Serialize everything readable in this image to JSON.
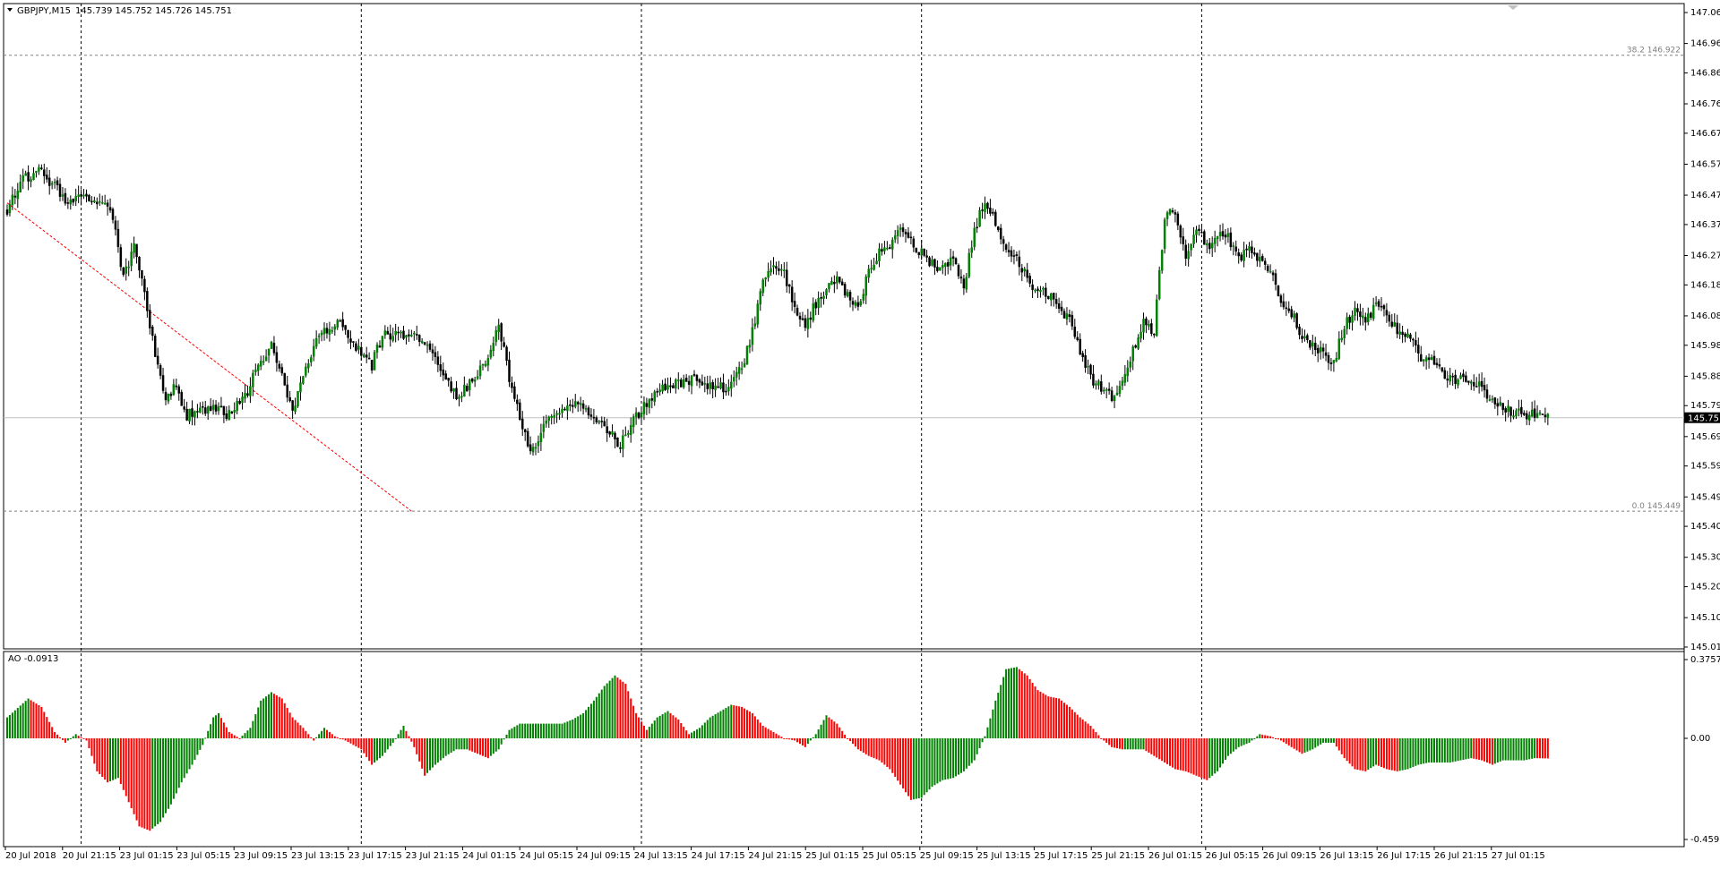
{
  "chart_data": [
    {
      "type": "candlestick",
      "symbol": "GBPJPY,M15",
      "header_label": "GBPJPY,M15",
      "ohlc_label": "145.739 145.752 145.726 145.751",
      "current_price": 145.751,
      "current_price_label": "145.751",
      "ylim": [
        145.01,
        147.06
      ],
      "y_ticks": [
        "147.060",
        "146.960",
        "146.865",
        "146.765",
        "146.670",
        "146.570",
        "146.470",
        "146.375",
        "146.275",
        "146.180",
        "146.080",
        "145.985",
        "145.885",
        "145.790",
        "145.690",
        "145.595",
        "145.495",
        "145.400",
        "145.300",
        "145.205",
        "145.105",
        "145.010"
      ],
      "x_ticks": [
        "20 Jul 2018",
        "20 Jul 21:15",
        "23 Jul 01:15",
        "23 Jul 05:15",
        "23 Jul 09:15",
        "23 Jul 13:15",
        "23 Jul 17:15",
        "23 Jul 21:15",
        "24 Jul 01:15",
        "24 Jul 05:15",
        "24 Jul 09:15",
        "24 Jul 13:15",
        "24 Jul 17:15",
        "24 Jul 21:15",
        "25 Jul 01:15",
        "25 Jul 05:15",
        "25 Jul 09:15",
        "25 Jul 13:15",
        "25 Jul 17:15",
        "25 Jul 21:15",
        "26 Jul 01:15",
        "26 Jul 05:15",
        "26 Jul 09:15",
        "26 Jul 13:15",
        "26 Jul 17:15",
        "26 Jul 21:15",
        "27 Jul 01:15"
      ],
      "fibonacci": [
        {
          "label": "38.2 146.922",
          "price": 146.922
        },
        {
          "label": "0.0 145.449",
          "price": 145.449
        }
      ],
      "close_path": [
        [
          0,
          146.42
        ],
        [
          6,
          146.52
        ],
        [
          12,
          146.55
        ],
        [
          18,
          146.5
        ],
        [
          24,
          146.44
        ],
        [
          30,
          146.47
        ],
        [
          36,
          146.45
        ],
        [
          40,
          146.4
        ],
        [
          44,
          146.2
        ],
        [
          48,
          146.3
        ],
        [
          52,
          146.15
        ],
        [
          56,
          145.96
        ],
        [
          60,
          145.82
        ],
        [
          64,
          145.85
        ],
        [
          68,
          145.76
        ],
        [
          74,
          145.77
        ],
        [
          78,
          145.79
        ],
        [
          84,
          145.76
        ],
        [
          90,
          145.82
        ],
        [
          94,
          145.9
        ],
        [
          100,
          145.98
        ],
        [
          104,
          145.9
        ],
        [
          108,
          145.76
        ],
        [
          112,
          145.9
        ],
        [
          116,
          145.98
        ],
        [
          120,
          146.03
        ],
        [
          126,
          146.06
        ],
        [
          132,
          145.98
        ],
        [
          138,
          145.92
        ],
        [
          142,
          146.02
        ],
        [
          148,
          146.02
        ],
        [
          154,
          146.03
        ],
        [
          160,
          145.97
        ],
        [
          166,
          145.88
        ],
        [
          170,
          145.82
        ],
        [
          176,
          145.87
        ],
        [
          182,
          145.95
        ],
        [
          186,
          146.05
        ],
        [
          190,
          145.88
        ],
        [
          194,
          145.76
        ],
        [
          198,
          145.63
        ],
        [
          200,
          145.66
        ],
        [
          204,
          145.74
        ],
        [
          210,
          145.77
        ],
        [
          216,
          145.79
        ],
        [
          222,
          145.76
        ],
        [
          228,
          145.7
        ],
        [
          232,
          145.66
        ],
        [
          236,
          145.73
        ],
        [
          242,
          145.8
        ],
        [
          248,
          145.84
        ],
        [
          254,
          145.86
        ],
        [
          260,
          145.88
        ],
        [
          266,
          145.85
        ],
        [
          272,
          145.85
        ],
        [
          278,
          145.91
        ],
        [
          282,
          146.03
        ],
        [
          286,
          146.18
        ],
        [
          290,
          146.25
        ],
        [
          294,
          146.22
        ],
        [
          298,
          146.1
        ],
        [
          302,
          146.05
        ],
        [
          306,
          146.12
        ],
        [
          310,
          146.16
        ],
        [
          314,
          146.2
        ],
        [
          318,
          146.15
        ],
        [
          322,
          146.11
        ],
        [
          326,
          146.22
        ],
        [
          330,
          146.29
        ],
        [
          334,
          146.3
        ],
        [
          338,
          146.36
        ],
        [
          342,
          146.32
        ],
        [
          346,
          146.28
        ],
        [
          350,
          146.25
        ],
        [
          354,
          146.23
        ],
        [
          358,
          146.27
        ],
        [
          362,
          146.18
        ],
        [
          366,
          146.35
        ],
        [
          370,
          146.46
        ],
        [
          374,
          146.38
        ],
        [
          378,
          146.3
        ],
        [
          382,
          146.27
        ],
        [
          386,
          146.2
        ],
        [
          390,
          146.16
        ],
        [
          394,
          146.15
        ],
        [
          398,
          146.11
        ],
        [
          402,
          146.06
        ],
        [
          406,
          145.97
        ],
        [
          410,
          145.88
        ],
        [
          414,
          145.85
        ],
        [
          418,
          145.82
        ],
        [
          422,
          145.87
        ],
        [
          426,
          145.97
        ],
        [
          430,
          146.06
        ],
        [
          434,
          146.03
        ],
        [
          438,
          146.4
        ],
        [
          442,
          146.42
        ],
        [
          446,
          146.28
        ],
        [
          450,
          146.37
        ],
        [
          454,
          146.3
        ],
        [
          458,
          146.34
        ],
        [
          462,
          146.33
        ],
        [
          466,
          146.27
        ],
        [
          470,
          146.29
        ],
        [
          474,
          146.26
        ],
        [
          478,
          146.22
        ],
        [
          482,
          146.13
        ],
        [
          486,
          146.09
        ],
        [
          490,
          146.01
        ],
        [
          494,
          145.99
        ],
        [
          498,
          145.96
        ],
        [
          502,
          145.93
        ],
        [
          506,
          146.05
        ],
        [
          510,
          146.09
        ],
        [
          514,
          146.06
        ],
        [
          518,
          146.12
        ],
        [
          522,
          146.08
        ],
        [
          526,
          146.03
        ],
        [
          530,
          146.02
        ],
        [
          534,
          145.95
        ],
        [
          538,
          145.94
        ],
        [
          542,
          145.91
        ],
        [
          546,
          145.88
        ],
        [
          550,
          145.87
        ],
        [
          554,
          145.88
        ],
        [
          558,
          145.84
        ],
        [
          562,
          145.81
        ],
        [
          566,
          145.78
        ],
        [
          570,
          145.77
        ],
        [
          574,
          145.76
        ],
        [
          578,
          145.76
        ],
        [
          583,
          145.75
        ]
      ]
    },
    {
      "type": "bar",
      "indicator": "AO",
      "label": "AO -0.0913",
      "ylim": [
        -0.4595,
        0.3757
      ],
      "y_ticks": [
        "0.3757",
        "0.00",
        "-0.4595"
      ],
      "keypoints": [
        [
          0,
          0.1
        ],
        [
          8,
          0.19
        ],
        [
          13,
          0.15
        ],
        [
          18,
          0.03
        ],
        [
          22,
          -0.02
        ],
        [
          26,
          0.02
        ],
        [
          30,
          -0.01
        ],
        [
          34,
          -0.15
        ],
        [
          38,
          -0.2
        ],
        [
          42,
          -0.18
        ],
        [
          46,
          -0.29
        ],
        [
          50,
          -0.4
        ],
        [
          54,
          -0.42
        ],
        [
          58,
          -0.38
        ],
        [
          62,
          -0.3
        ],
        [
          66,
          -0.2
        ],
        [
          70,
          -0.12
        ],
        [
          74,
          -0.03
        ],
        [
          78,
          0.1
        ],
        [
          80,
          0.12
        ],
        [
          84,
          0.03
        ],
        [
          88,
          0.0
        ],
        [
          92,
          0.05
        ],
        [
          96,
          0.18
        ],
        [
          100,
          0.22
        ],
        [
          104,
          0.19
        ],
        [
          108,
          0.1
        ],
        [
          112,
          0.05
        ],
        [
          116,
          -0.01
        ],
        [
          120,
          0.05
        ],
        [
          124,
          0.01
        ],
        [
          128,
          -0.01
        ],
        [
          134,
          -0.05
        ],
        [
          138,
          -0.12
        ],
        [
          142,
          -0.08
        ],
        [
          146,
          -0.02
        ],
        [
          150,
          0.06
        ],
        [
          154,
          -0.04
        ],
        [
          158,
          -0.17
        ],
        [
          162,
          -0.12
        ],
        [
          166,
          -0.08
        ],
        [
          170,
          -0.05
        ],
        [
          174,
          -0.05
        ],
        [
          178,
          -0.07
        ],
        [
          182,
          -0.09
        ],
        [
          186,
          -0.05
        ],
        [
          190,
          0.04
        ],
        [
          194,
          0.07
        ],
        [
          198,
          0.07
        ],
        [
          202,
          0.07
        ],
        [
          206,
          0.07
        ],
        [
          210,
          0.07
        ],
        [
          214,
          0.09
        ],
        [
          218,
          0.12
        ],
        [
          222,
          0.18
        ],
        [
          226,
          0.25
        ],
        [
          230,
          0.3
        ],
        [
          234,
          0.26
        ],
        [
          238,
          0.12
        ],
        [
          242,
          0.04
        ],
        [
          246,
          0.1
        ],
        [
          250,
          0.13
        ],
        [
          254,
          0.09
        ],
        [
          258,
          0.02
        ],
        [
          262,
          0.05
        ],
        [
          266,
          0.1
        ],
        [
          270,
          0.13
        ],
        [
          274,
          0.16
        ],
        [
          278,
          0.15
        ],
        [
          282,
          0.12
        ],
        [
          286,
          0.06
        ],
        [
          290,
          0.03
        ],
        [
          294,
          0.0
        ],
        [
          298,
          -0.01
        ],
        [
          302,
          -0.04
        ],
        [
          306,
          0.02
        ],
        [
          310,
          0.11
        ],
        [
          314,
          0.07
        ],
        [
          318,
          0.0
        ],
        [
          322,
          -0.05
        ],
        [
          326,
          -0.08
        ],
        [
          330,
          -0.1
        ],
        [
          334,
          -0.14
        ],
        [
          338,
          -0.21
        ],
        [
          342,
          -0.28
        ],
        [
          346,
          -0.27
        ],
        [
          350,
          -0.22
        ],
        [
          354,
          -0.19
        ],
        [
          358,
          -0.18
        ],
        [
          362,
          -0.15
        ],
        [
          366,
          -0.1
        ],
        [
          370,
          0.01
        ],
        [
          374,
          0.18
        ],
        [
          378,
          0.33
        ],
        [
          382,
          0.34
        ],
        [
          386,
          0.3
        ],
        [
          390,
          0.23
        ],
        [
          394,
          0.2
        ],
        [
          398,
          0.19
        ],
        [
          402,
          0.15
        ],
        [
          406,
          0.1
        ],
        [
          410,
          0.06
        ],
        [
          414,
          0.0
        ],
        [
          418,
          -0.04
        ],
        [
          422,
          -0.05
        ],
        [
          426,
          -0.05
        ],
        [
          430,
          -0.05
        ],
        [
          434,
          -0.08
        ],
        [
          438,
          -0.11
        ],
        [
          442,
          -0.14
        ],
        [
          446,
          -0.15
        ],
        [
          450,
          -0.17
        ],
        [
          454,
          -0.19
        ],
        [
          458,
          -0.15
        ],
        [
          462,
          -0.08
        ],
        [
          466,
          -0.04
        ],
        [
          470,
          -0.02
        ],
        [
          474,
          0.02
        ],
        [
          478,
          0.01
        ],
        [
          482,
          -0.01
        ],
        [
          486,
          -0.04
        ],
        [
          490,
          -0.07
        ],
        [
          494,
          -0.05
        ],
        [
          498,
          -0.02
        ],
        [
          502,
          -0.02
        ],
        [
          506,
          -0.09
        ],
        [
          510,
          -0.14
        ],
        [
          514,
          -0.15
        ],
        [
          518,
          -0.12
        ],
        [
          522,
          -0.14
        ],
        [
          526,
          -0.15
        ],
        [
          530,
          -0.14
        ],
        [
          534,
          -0.12
        ],
        [
          538,
          -0.11
        ],
        [
          542,
          -0.11
        ],
        [
          546,
          -0.11
        ],
        [
          550,
          -0.1
        ],
        [
          554,
          -0.09
        ],
        [
          558,
          -0.1
        ],
        [
          562,
          -0.12
        ],
        [
          566,
          -0.1
        ],
        [
          570,
          -0.1
        ],
        [
          574,
          -0.1
        ],
        [
          578,
          -0.09
        ],
        [
          583,
          -0.0913
        ]
      ]
    }
  ],
  "colors": {
    "candle_up": "#008000",
    "candle_down": "#000000",
    "ao_up": "#008000",
    "ao_down": "#ff0000",
    "grid": "#000000",
    "fibo": "#808080",
    "trendline": "#ff0000",
    "price_label_bg": "#000000",
    "price_label_fg": "#ffffff"
  }
}
